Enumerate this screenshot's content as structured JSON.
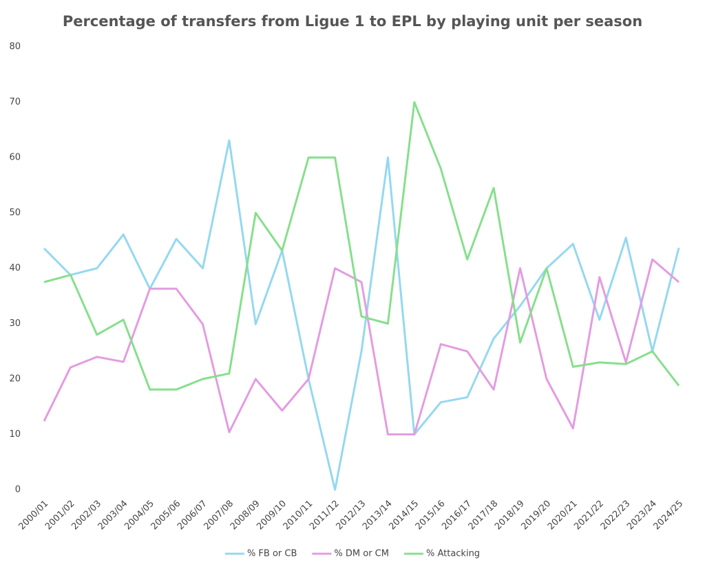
{
  "chart_data": {
    "type": "line",
    "title": "Percentage of transfers from Ligue 1 to EPL by playing unit per season",
    "categories": [
      "2000/01",
      "2001/02",
      "2002/03",
      "2003/04",
      "2004/05",
      "2005/06",
      "2006/07",
      "2007/08",
      "2008/09",
      "2009/10",
      "2010/11",
      "2011/12",
      "2012/13",
      "2013/14",
      "2014/15",
      "2015/16",
      "2016/17",
      "2017/18",
      "2018/19",
      "2019/20",
      "2020/21",
      "2021/22",
      "2022/23",
      "2023/24",
      "2024/25"
    ],
    "series": [
      {
        "name": "% FB or CB",
        "color": "#94d8f0",
        "values": [
          43.6,
          38.8,
          40,
          46.1,
          36.3,
          45.3,
          40,
          63.1,
          29.9,
          43.2,
          20,
          0,
          25,
          60,
          10,
          15.8,
          16.7,
          27.3,
          33.2,
          40,
          44.4,
          30.7,
          45.5,
          25,
          43.7
        ]
      },
      {
        "name": "% DM or CM",
        "color": "#e39ce0",
        "values": [
          12.4,
          22.1,
          24,
          23.1,
          36.3,
          36.3,
          29.9,
          10.4,
          20,
          14.3,
          20,
          40,
          37.5,
          10,
          10,
          26.3,
          25,
          18.1,
          40,
          20,
          11.1,
          38.4,
          23,
          41.6,
          37.5
        ]
      },
      {
        "name": "% Attacking",
        "color": "#86df8c",
        "values": [
          37.5,
          38.8,
          28,
          30.7,
          18.1,
          18.1,
          20,
          21,
          50,
          43.2,
          60,
          60,
          31.3,
          30,
          70,
          58,
          41.6,
          54.5,
          26.6,
          40,
          22.2,
          23,
          22.7,
          25,
          18.8
        ]
      }
    ],
    "ylim": [
      0,
      80
    ],
    "yticks": [
      0,
      10,
      20,
      30,
      40,
      50,
      60,
      70,
      80
    ],
    "grid": false,
    "legend": "bottom"
  }
}
